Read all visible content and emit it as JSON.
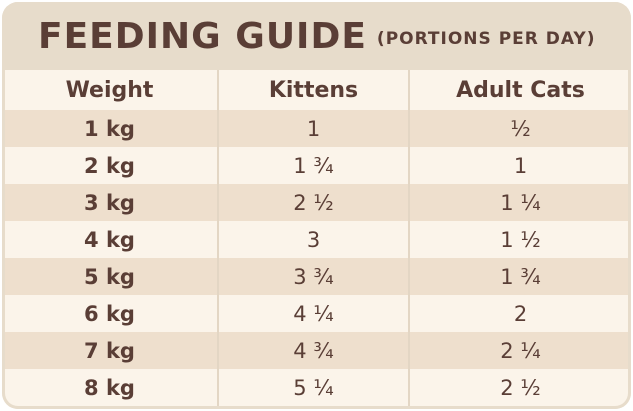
{
  "title": {
    "main": "FEEDING GUIDE",
    "sub": "(PORTIONS PER DAY)"
  },
  "table": {
    "headers": [
      "Weight",
      "Kittens",
      "Adult Cats"
    ],
    "rows": [
      [
        "1 kg",
        "1",
        "½"
      ],
      [
        "2 kg",
        "1 ¾",
        "1"
      ],
      [
        "3 kg",
        "2 ½",
        "1 ¼"
      ],
      [
        "4 kg",
        "3",
        "1 ½"
      ],
      [
        "5 kg",
        "3 ¾",
        "1 ¾"
      ],
      [
        "6 kg",
        "4 ¼",
        "2"
      ],
      [
        "7 kg",
        "4 ¾",
        "2 ¼"
      ],
      [
        "8 kg",
        "5 ¼",
        "2 ½"
      ]
    ]
  },
  "colors": {
    "text": "#5a3e36",
    "frame": "#e7dccb",
    "row_light": "#fbf4ea",
    "row_tan": "#eedfcd"
  }
}
